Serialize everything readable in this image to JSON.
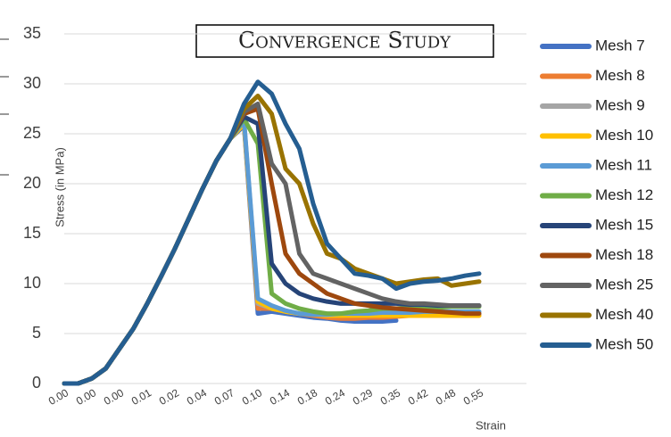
{
  "chart_data": {
    "type": "line",
    "title": "Convergence Study",
    "ylabel": "Stress (in MPa)",
    "xlabel": "Strain",
    "categories": [
      "0.00",
      null,
      "0.00",
      null,
      "0.00",
      null,
      "0.01",
      null,
      "0.02",
      null,
      "0.04",
      null,
      "0.07",
      null,
      "0.10",
      null,
      "0.14",
      null,
      "0.18",
      null,
      "0.24",
      null,
      "0.29",
      null,
      "0.35",
      null,
      "0.42",
      null,
      "0.48",
      null,
      "0.55"
    ],
    "ylim": [
      0,
      35
    ],
    "yticks": [
      0,
      5,
      10,
      15,
      20,
      25,
      30,
      35
    ],
    "grid": true,
    "series": [
      {
        "name": "Mesh 7",
        "color": "#4472c4",
        "values": [
          0,
          0,
          0.5,
          1.5,
          3.5,
          5.5,
          8,
          10.7,
          13.5,
          16.5,
          19.5,
          22.3,
          24.5,
          25.8,
          7,
          7.2,
          7,
          6.8,
          6.6,
          6.5,
          6.3,
          6.2,
          6.2,
          6.2,
          6.3,
          null,
          null,
          null,
          null,
          null,
          null
        ]
      },
      {
        "name": "Mesh 8",
        "color": "#ed7d31",
        "values": [
          0,
          0,
          0.5,
          1.5,
          3.5,
          5.5,
          8,
          10.7,
          13.5,
          16.5,
          19.5,
          22.3,
          24.5,
          26,
          7.5,
          7.5,
          7.2,
          7,
          6.8,
          6.6,
          6.5,
          6.5,
          6.6,
          6.6,
          6.7,
          6.8,
          6.8,
          6.8,
          6.8,
          6.8,
          6.8
        ]
      },
      {
        "name": "Mesh 9",
        "color": "#a5a5a5",
        "values": [
          0,
          0,
          0.5,
          1.5,
          3.5,
          5.5,
          8,
          10.7,
          13.5,
          16.5,
          19.5,
          22.3,
          24.5,
          26.2,
          8,
          7.5,
          7.2,
          7,
          7,
          6.9,
          6.9,
          7,
          7,
          7,
          7,
          7,
          7,
          7,
          7,
          7,
          7
        ]
      },
      {
        "name": "Mesh 10",
        "color": "#ffc000",
        "values": [
          0,
          0,
          0.5,
          1.5,
          3.5,
          5.5,
          8,
          10.7,
          13.5,
          16.5,
          19.5,
          22.3,
          24.5,
          26,
          8.2,
          7.5,
          7.2,
          7,
          6.9,
          6.8,
          6.8,
          6.8,
          6.8,
          6.8,
          6.8,
          6.8,
          6.8,
          6.8,
          6.8,
          6.8,
          6.8
        ]
      },
      {
        "name": "Mesh 11",
        "color": "#5b9bd5",
        "values": [
          0,
          0,
          0.5,
          1.5,
          3.5,
          5.5,
          8,
          10.7,
          13.5,
          16.5,
          19.5,
          22.3,
          24.5,
          26.3,
          8.5,
          7.8,
          7.3,
          7,
          6.9,
          6.9,
          7,
          7,
          7,
          7.1,
          7.1,
          7.1,
          7.2,
          7.2,
          7.2,
          7.2,
          7.2
        ]
      },
      {
        "name": "Mesh 12",
        "color": "#70ad47",
        "values": [
          0,
          0,
          0.5,
          1.5,
          3.5,
          5.5,
          8,
          10.7,
          13.5,
          16.5,
          19.5,
          22.3,
          24.5,
          26.5,
          24,
          9,
          8,
          7.5,
          7.2,
          7,
          7,
          7.2,
          7.3,
          7.5,
          7.5,
          7.6,
          7.6,
          7.6,
          7.7,
          7.7,
          7.7
        ]
      },
      {
        "name": "Mesh 15",
        "color": "#264478",
        "values": [
          0,
          0,
          0.5,
          1.5,
          3.5,
          5.5,
          8,
          10.7,
          13.5,
          16.5,
          19.5,
          22.3,
          24.5,
          26.7,
          26,
          12,
          10,
          9,
          8.5,
          8.2,
          8,
          8,
          8,
          8,
          8,
          7.9,
          7.9,
          7.8,
          7.8,
          7.8,
          7.8
        ]
      },
      {
        "name": "Mesh 18",
        "color": "#9e480e",
        "values": [
          0,
          0,
          0.5,
          1.5,
          3.5,
          5.5,
          8,
          10.7,
          13.5,
          16.5,
          19.5,
          22.3,
          24.5,
          27,
          27.5,
          20,
          13,
          11,
          10,
          9,
          8.5,
          8,
          7.8,
          7.6,
          7.5,
          7.4,
          7.3,
          7.2,
          7.1,
          7,
          7
        ]
      },
      {
        "name": "Mesh 25",
        "color": "#636363",
        "values": [
          0,
          0,
          0.5,
          1.5,
          3.5,
          5.5,
          8,
          10.7,
          13.5,
          16.5,
          19.5,
          22.3,
          24.5,
          27.2,
          28,
          22,
          20,
          13,
          11,
          10.5,
          10,
          9.5,
          9,
          8.5,
          8.2,
          8,
          8,
          7.9,
          7.8,
          7.8,
          7.8
        ]
      },
      {
        "name": "Mesh 40",
        "color": "#997300",
        "values": [
          0,
          0,
          0.5,
          1.5,
          3.5,
          5.5,
          8,
          10.7,
          13.5,
          16.5,
          19.5,
          22.3,
          24.5,
          27.5,
          28.8,
          27,
          21.5,
          20,
          16,
          13,
          12.5,
          11.5,
          11,
          10.5,
          10,
          10.2,
          10.4,
          10.5,
          9.8,
          10,
          10.2
        ]
      },
      {
        "name": "Mesh 50",
        "color": "#255e91",
        "values": [
          0,
          0,
          0.5,
          1.5,
          3.5,
          5.5,
          8,
          10.7,
          13.5,
          16.5,
          19.5,
          22.3,
          24.5,
          28,
          30.2,
          29,
          26,
          23.5,
          18,
          14,
          12.5,
          11,
          10.8,
          10.5,
          9.5,
          10,
          10.2,
          10.3,
          10.5,
          10.8,
          11
        ]
      }
    ]
  }
}
